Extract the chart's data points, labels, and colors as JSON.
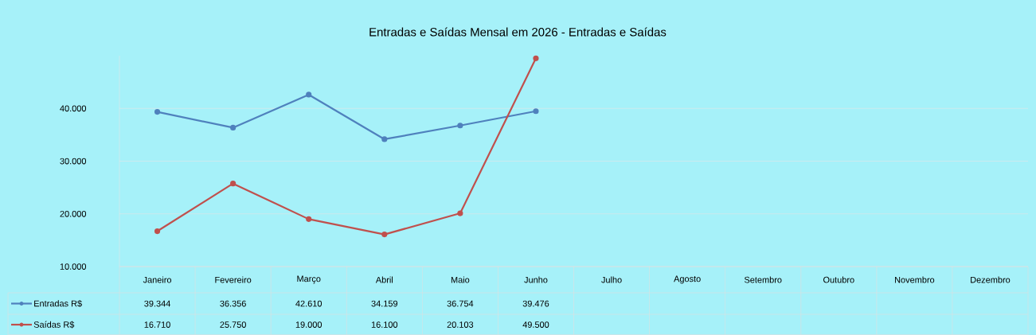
{
  "chart_data": {
    "type": "line",
    "title": "Entradas e Saídas Mensal em 2026 - Entradas e Saídas",
    "categories": [
      "Janeiro",
      "Fevereiro",
      "Março",
      "Abril",
      "Maio",
      "Junho",
      "Julho",
      "Agosto",
      "Setembro",
      "Outubro",
      "Novembro",
      "Dezembro"
    ],
    "series": [
      {
        "name": "Entradas R$",
        "color": "#4f81bd",
        "values": [
          39344,
          36356,
          42610,
          34159,
          36754,
          39476,
          null,
          null,
          null,
          null,
          null,
          null
        ],
        "value_labels": [
          "39.344",
          "36.356",
          "42.610",
          "34.159",
          "36.754",
          "39.476",
          null,
          null,
          null,
          null,
          null,
          null
        ]
      },
      {
        "name": "Saídas R$",
        "color": "#c0504d",
        "values": [
          16710,
          25750,
          19000,
          16100,
          20103,
          49500,
          null,
          null,
          null,
          null,
          null,
          null
        ],
        "value_labels": [
          "16.710",
          "25.750",
          "19.000",
          "16.100",
          "20.103",
          "49.500",
          null,
          null,
          null,
          null,
          null,
          null
        ]
      }
    ],
    "ylim": [
      10000,
      50000
    ],
    "yticks": [
      {
        "value": 10000,
        "label": "10.000"
      },
      {
        "value": 20000,
        "label": "20.000"
      },
      {
        "value": 30000,
        "label": "30.000"
      },
      {
        "value": 40000,
        "label": "40.000"
      }
    ],
    "grid": "y",
    "legend": "left",
    "marker": "circle",
    "line_style": "solid"
  }
}
